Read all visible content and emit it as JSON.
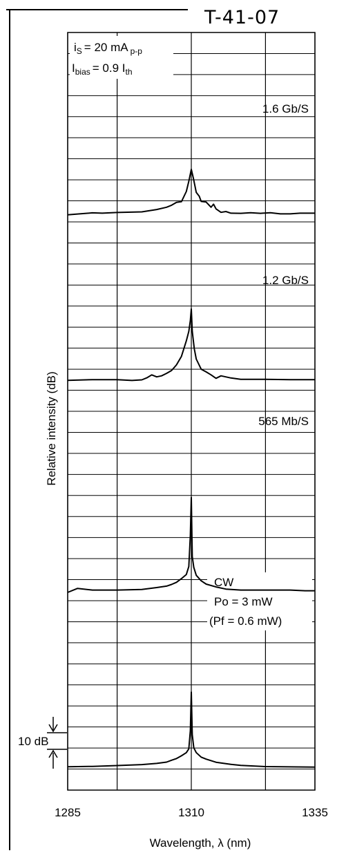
{
  "document": {
    "id": "T-41-07"
  },
  "chart_data": {
    "type": "line",
    "xlabel": "Wavelength, λ (nm)",
    "ylabel": "Relative intensity (dB)",
    "xlim": [
      1285,
      1335
    ],
    "x_ticks": [
      1285,
      1310,
      1335
    ],
    "grid": true,
    "conditions": {
      "is": {
        "base": "i",
        "sub": "S",
        "text": "= 20 mA",
        "sub2": "p-p"
      },
      "ibias": {
        "base": "I",
        "sub": "bias",
        "text": "= 0.9 I",
        "sub2": "th"
      }
    },
    "scale_bar": {
      "label": "10 dB",
      "value_db": 10
    },
    "panels": [
      {
        "label": "1.6 Gb/S",
        "lines": [
          "1.6 Gb/S"
        ],
        "x": [
          1285,
          1290,
          1292,
          1295,
          1300,
          1303,
          1305,
          1306,
          1307,
          1308,
          1309,
          1309.5,
          1310,
          1310.4,
          1311,
          1311.6,
          1312,
          1313,
          1314,
          1314.5,
          1315,
          1316,
          1317,
          1318,
          1320,
          1322,
          1324,
          1326,
          1328,
          1330,
          1332,
          1335
        ],
        "y_db": [
          0.5,
          1.7,
          1.5,
          1.9,
          2.3,
          3.7,
          5.1,
          6.3,
          8.0,
          8.4,
          14.6,
          20.7,
          27.9,
          22.8,
          14.0,
          11.7,
          8.6,
          8.2,
          5.1,
          6.9,
          4.1,
          2.0,
          2.5,
          1.5,
          1.4,
          1.8,
          1.4,
          1.8,
          1.1,
          1.1,
          1.5,
          1.5
        ]
      },
      {
        "label": "1.2 Gb/S",
        "lines": [
          "1.2 Gb/S"
        ],
        "x": [
          1285,
          1290,
          1295,
          1298,
          1300,
          1301,
          1302,
          1303,
          1304,
          1305,
          1306,
          1307,
          1308,
          1309,
          1309.5,
          1309.8,
          1310,
          1310.2,
          1310.6,
          1311,
          1312,
          1313,
          1314,
          1315,
          1316,
          1318,
          1320,
          1325,
          1330,
          1335
        ],
        "y_db": [
          2.0,
          2.4,
          2.4,
          1.9,
          2.3,
          3.5,
          5.3,
          4.1,
          4.7,
          6.2,
          7.9,
          11.3,
          16.4,
          25.8,
          31.5,
          38.0,
          45.0,
          31.5,
          21.1,
          14.8,
          8.7,
          7.1,
          5.3,
          3.2,
          4.7,
          3.4,
          2.6,
          2.6,
          2.4,
          2.4
        ]
      },
      {
        "label": "565 Mb/S",
        "lines": [
          "565 Mb/S"
        ],
        "x": [
          1285,
          1287,
          1290,
          1295,
          1300,
          1303,
          1305,
          1306,
          1307,
          1308,
          1309,
          1309.5,
          1309.8,
          1310,
          1310.2,
          1310.5,
          1311,
          1312,
          1313,
          1315,
          1317,
          1320,
          1325,
          1330,
          1333,
          1335
        ],
        "y_db": [
          0.0,
          2.4,
          1.4,
          1.4,
          1.8,
          2.9,
          3.8,
          4.8,
          6.1,
          8.3,
          10.8,
          15.6,
          34.4,
          57.2,
          21.6,
          15.1,
          10.3,
          7.0,
          5.0,
          3.3,
          2.0,
          1.4,
          1.4,
          1.4,
          1.0,
          1.0
        ]
      },
      {
        "label": "CW",
        "lines": [
          "CW",
          "Po = 3 mW",
          "(Pf  = 0.6 mW)"
        ],
        "x": [
          1285,
          1290,
          1295,
          1300,
          1303,
          1305,
          1306,
          1307,
          1308,
          1309,
          1309.5,
          1309.8,
          1310,
          1310.2,
          1310.5,
          1311,
          1312,
          1313,
          1315,
          1318,
          1320,
          1325,
          1330,
          1335
        ],
        "y_db": [
          2.0,
          2.2,
          2.7,
          3.3,
          4.0,
          4.8,
          5.9,
          6.9,
          8.6,
          10.5,
          12.8,
          23.7,
          47.0,
          21.3,
          13.4,
          10.5,
          7.8,
          6.6,
          4.7,
          3.4,
          2.8,
          2.1,
          1.9,
          1.8
        ]
      }
    ]
  }
}
